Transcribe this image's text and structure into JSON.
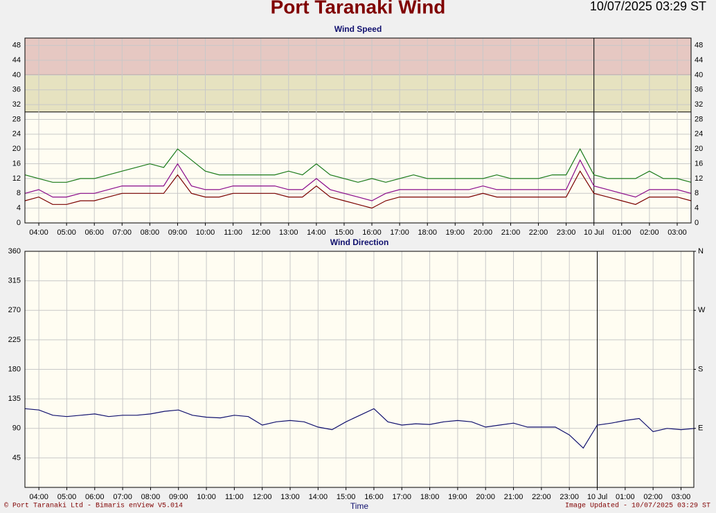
{
  "header": {
    "title": "Port Taranaki Wind",
    "timestamp": "10/07/2025 03:29 ST"
  },
  "footer": {
    "copyright": "© Port Taranaki Ltd - Bimaris enView V5.014",
    "updated": "Image Updated - 10/07/2025 03:29 ST"
  },
  "chart_data": [
    {
      "type": "line",
      "title": "Wind Speed",
      "x": [
        3.5,
        4,
        4.5,
        5,
        5.5,
        6,
        6.5,
        7,
        7.5,
        8,
        8.5,
        9,
        9.5,
        10,
        10.5,
        11,
        11.5,
        12,
        12.5,
        13,
        13.5,
        14,
        14.5,
        15,
        15.5,
        16,
        16.5,
        17,
        17.5,
        18,
        18.5,
        19,
        19.5,
        20,
        20.5,
        21,
        21.5,
        22,
        22.5,
        23,
        23.5,
        24,
        24.5,
        25,
        25.5,
        26,
        26.5,
        27,
        27.5
      ],
      "series": [
        {
          "color": "#1a7a1a",
          "values": [
            13,
            12,
            11,
            11,
            12,
            12,
            13,
            14,
            15,
            16,
            15,
            20,
            17,
            14,
            13,
            13,
            13,
            13,
            13,
            14,
            13,
            16,
            13,
            12,
            11,
            12,
            11,
            12,
            13,
            12,
            12,
            12,
            12,
            12,
            13,
            12,
            12,
            12,
            13,
            13,
            20,
            13,
            12,
            12,
            12,
            14,
            12,
            12,
            11
          ]
        },
        {
          "color": "#8a0a8a",
          "values": [
            8,
            9,
            7,
            7,
            8,
            8,
            9,
            10,
            10,
            10,
            10,
            16,
            10,
            9,
            9,
            10,
            10,
            10,
            10,
            9,
            9,
            12,
            9,
            8,
            7,
            6,
            8,
            9,
            9,
            9,
            9,
            9,
            9,
            10,
            9,
            9,
            9,
            9,
            9,
            9,
            17,
            10,
            9,
            8,
            7,
            9,
            9,
            9,
            8
          ]
        },
        {
          "color": "#7a0000",
          "values": [
            6,
            7,
            5,
            5,
            6,
            6,
            7,
            8,
            8,
            8,
            8,
            13,
            8,
            7,
            7,
            8,
            8,
            8,
            8,
            7,
            7,
            10,
            7,
            6,
            5,
            4,
            6,
            7,
            7,
            7,
            7,
            7,
            7,
            8,
            7,
            7,
            7,
            7,
            7,
            7,
            14,
            8,
            7,
            6,
            5,
            7,
            7,
            7,
            6
          ]
        }
      ],
      "xlim": [
        3.5,
        27.5
      ],
      "xticks": [
        {
          "value": 4,
          "label": "04:00"
        },
        {
          "value": 5,
          "label": "05:00"
        },
        {
          "value": 6,
          "label": "06:00"
        },
        {
          "value": 7,
          "label": "07:00"
        },
        {
          "value": 8,
          "label": "08:00"
        },
        {
          "value": 9,
          "label": "09:00"
        },
        {
          "value": 10,
          "label": "10:00"
        },
        {
          "value": 11,
          "label": "11:00"
        },
        {
          "value": 12,
          "label": "12:00"
        },
        {
          "value": 13,
          "label": "13:00"
        },
        {
          "value": 14,
          "label": "14:00"
        },
        {
          "value": 15,
          "label": "15:00"
        },
        {
          "value": 16,
          "label": "16:00"
        },
        {
          "value": 17,
          "label": "17:00"
        },
        {
          "value": 18,
          "label": "18:00"
        },
        {
          "value": 19,
          "label": "19:00"
        },
        {
          "value": 20,
          "label": "20:00"
        },
        {
          "value": 21,
          "label": "21:00"
        },
        {
          "value": 22,
          "label": "22:00"
        },
        {
          "value": 23,
          "label": "23:00"
        },
        {
          "value": 24,
          "label": "10 Jul"
        },
        {
          "value": 25,
          "label": "01:00"
        },
        {
          "value": 26,
          "label": "02:00"
        },
        {
          "value": 27,
          "label": "03:00"
        }
      ],
      "ylim": [
        0,
        50
      ],
      "yticks": [
        0,
        4,
        8,
        12,
        16,
        20,
        24,
        28,
        32,
        36,
        40,
        44,
        48
      ],
      "bands": [
        {
          "from": 40,
          "to": 50,
          "color": "#e6c8c2"
        },
        {
          "from": 30,
          "to": 40,
          "color": "#e6e2c0"
        }
      ],
      "day_divider": 24,
      "grid": true
    },
    {
      "type": "line",
      "title": "Wind Direction",
      "x_label": "Time",
      "x": [
        3.5,
        4,
        4.5,
        5,
        5.5,
        6,
        6.5,
        7,
        7.5,
        8,
        8.5,
        9,
        9.5,
        10,
        10.5,
        11,
        11.5,
        12,
        12.5,
        13,
        13.5,
        14,
        14.5,
        15,
        15.5,
        16,
        16.5,
        17,
        17.5,
        18,
        18.5,
        19,
        19.5,
        20,
        20.5,
        21,
        21.5,
        22,
        22.5,
        23,
        23.5,
        24,
        24.5,
        25,
        25.5,
        26,
        26.5,
        27,
        27.5
      ],
      "series": [
        {
          "color": "#10106e",
          "values": [
            120,
            118,
            110,
            108,
            110,
            112,
            108,
            110,
            110,
            112,
            116,
            118,
            110,
            107,
            106,
            110,
            108,
            95,
            100,
            102,
            100,
            92,
            88,
            100,
            110,
            120,
            100,
            95,
            97,
            96,
            100,
            102,
            100,
            92,
            95,
            98,
            92,
            92,
            92,
            80,
            60,
            95,
            98,
            102,
            105,
            85,
            90,
            88,
            90
          ]
        }
      ],
      "xlim": [
        3.5,
        27.46
      ],
      "xticks": [
        {
          "value": 4,
          "label": "04:00"
        },
        {
          "value": 5,
          "label": "05:00"
        },
        {
          "value": 6,
          "label": "06:00"
        },
        {
          "value": 7,
          "label": "07:00"
        },
        {
          "value": 8,
          "label": "08:00"
        },
        {
          "value": 9,
          "label": "09:00"
        },
        {
          "value": 10,
          "label": "10:00"
        },
        {
          "value": 11,
          "label": "11:00"
        },
        {
          "value": 12,
          "label": "12:00"
        },
        {
          "value": 13,
          "label": "13:00"
        },
        {
          "value": 14,
          "label": "14:00"
        },
        {
          "value": 15,
          "label": "15:00"
        },
        {
          "value": 16,
          "label": "16:00"
        },
        {
          "value": 17,
          "label": "17:00"
        },
        {
          "value": 18,
          "label": "18:00"
        },
        {
          "value": 19,
          "label": "19:00"
        },
        {
          "value": 20,
          "label": "20:00"
        },
        {
          "value": 21,
          "label": "21:00"
        },
        {
          "value": 22,
          "label": "22:00"
        },
        {
          "value": 23,
          "label": "23:00"
        },
        {
          "value": 24,
          "label": "10 Jul"
        },
        {
          "value": 25,
          "label": "01:00"
        },
        {
          "value": 26,
          "label": "02:00"
        },
        {
          "value": 27,
          "label": "03:00"
        }
      ],
      "ylim": [
        0,
        360
      ],
      "yticks": [
        45,
        90,
        135,
        180,
        225,
        270,
        315,
        360
      ],
      "y2lim": [
        0,
        360
      ],
      "y2ticks": [
        {
          "value": 90,
          "label": "E"
        },
        {
          "value": 180,
          "label": "S"
        },
        {
          "value": 270,
          "label": "W"
        },
        {
          "value": 360,
          "label": "N"
        }
      ],
      "day_divider": 24,
      "grid": true
    }
  ]
}
